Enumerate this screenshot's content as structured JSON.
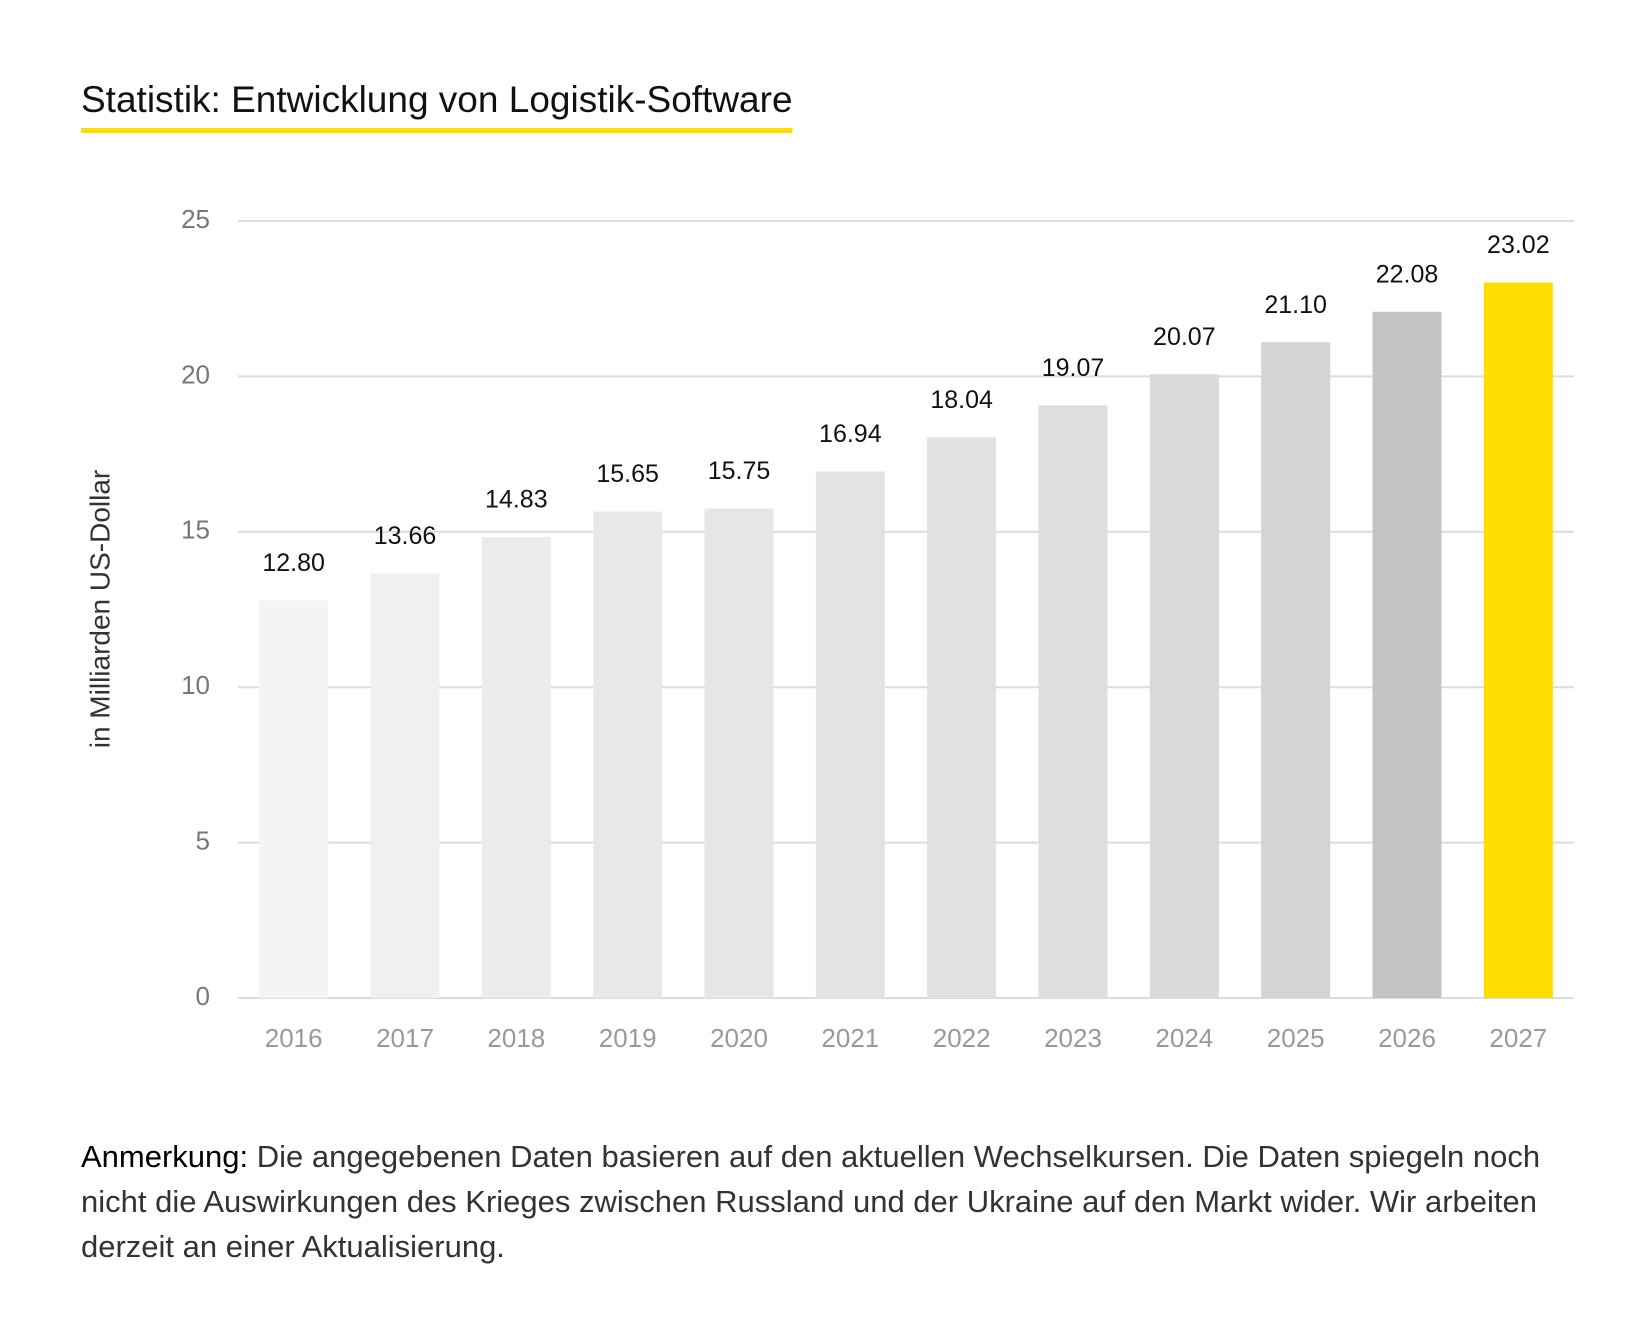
{
  "chart_data": {
    "type": "bar",
    "title": "Statistik: Entwicklung von Logistik-Software",
    "y_label": "in Milliarden US-Dollar",
    "categories": [
      "2016",
      "2017",
      "2018",
      "2019",
      "2020",
      "2021",
      "2022",
      "2023",
      "2024",
      "2025",
      "2026",
      "2027"
    ],
    "values": [
      12.8,
      13.66,
      14.83,
      15.65,
      15.75,
      16.94,
      18.04,
      19.07,
      20.07,
      21.1,
      22.08,
      23.02
    ],
    "value_labels": [
      "12.80",
      "13.66",
      "14.83",
      "15.65",
      "15.75",
      "16.94",
      "18.04",
      "19.07",
      "20.07",
      "21.10",
      "22.08",
      "23.02"
    ],
    "colors": [
      "#f4f4f4",
      "#f0f0f0",
      "#ebebeb",
      "#e8e8e8",
      "#e6e6e6",
      "#e3e3e3",
      "#e1e1e1",
      "#dedede",
      "#d9d9d9",
      "#d4d4d4",
      "#c4c4c4",
      "#ffdd00"
    ],
    "ylim": [
      0,
      25
    ],
    "yticks": [
      0,
      5,
      10,
      15,
      20,
      25
    ],
    "grid": true,
    "note_label": "Anmerkung:",
    "note_text": "Die angegebenen Daten basieren auf den aktuellen Wechselkursen. Die Daten spiegeln noch nicht die Auswirkungen des Krieges zwischen Russland und der Ukraine auf den Markt wider. Wir arbeiten derzeit an einer Aktualisierung."
  }
}
